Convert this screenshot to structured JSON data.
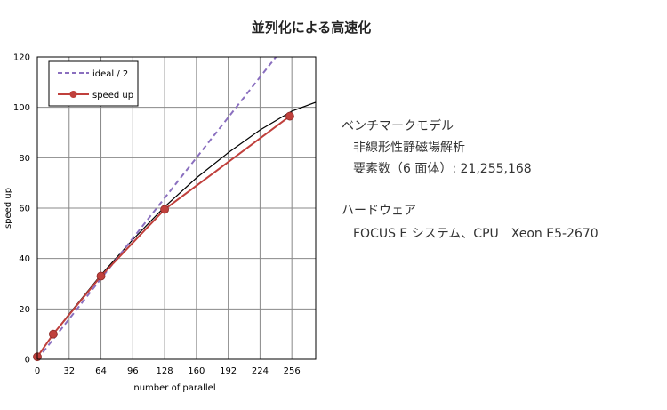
{
  "slide": {
    "title": "並列化による高速化"
  },
  "info": {
    "benchmark_heading": "ベンチマークモデル",
    "benchmark_model": "非線形性静磁場解析",
    "element_count": "要素数（6 面体）: 21,255,168",
    "hardware_heading": "ハードウェア",
    "hardware_spec": "FOCUS E システム、CPU　Xeon E5-2670"
  },
  "colors": {
    "ideal": "#8a6fbf",
    "speedup": "#c0403c",
    "fit": "#000000",
    "grid": "#888888"
  },
  "chart_data": {
    "type": "line",
    "xlabel": "number of parallel",
    "ylabel": "speed up",
    "xlim": [
      0,
      280
    ],
    "ylim": [
      0,
      120
    ],
    "xticks": [
      0,
      32,
      64,
      96,
      128,
      160,
      192,
      224,
      256
    ],
    "yticks": [
      0,
      20,
      40,
      60,
      80,
      100,
      120
    ],
    "grid": true,
    "legend_position": "top-left",
    "series": [
      {
        "name": "ideal / 2",
        "style": "dashed",
        "x": [
          0,
          244
        ],
        "y": [
          0,
          122
        ]
      },
      {
        "name": "speed up",
        "style": "line-marker",
        "x": [
          0,
          16,
          64,
          128,
          254
        ],
        "y": [
          1,
          10,
          33,
          59.5,
          96.5
        ]
      }
    ],
    "trendline": {
      "x": [
        0,
        16,
        32,
        64,
        96,
        128,
        160,
        192,
        224,
        256,
        280
      ],
      "y": [
        1,
        10,
        18,
        33.5,
        47.5,
        60.5,
        72,
        82,
        91,
        98.5,
        102
      ]
    }
  }
}
